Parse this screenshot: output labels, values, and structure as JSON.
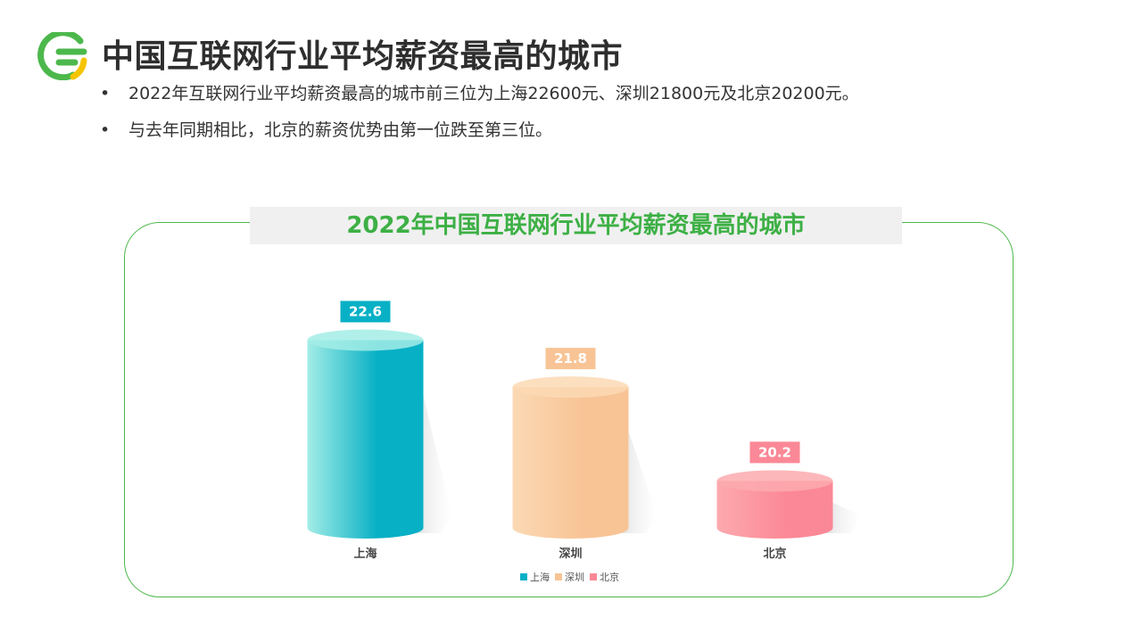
{
  "header": {
    "title": "中国互联网行业平均薪资最高的城市",
    "bullets": [
      "2022年互联网行业平均薪资最高的城市前三位为上海22600元、深圳21800元及北京20200元。",
      "与去年同期相比，北京的薪资优势由第一位跌至第三位。"
    ],
    "bullet_symbol": "•"
  },
  "logo": {
    "icon": "brand-logo-icon",
    "colors": [
      "#4cb84c",
      "#f5c400"
    ]
  },
  "chart_data": {
    "type": "bar",
    "title": "2022年中国互联网行业平均薪资最高的城市",
    "categories": [
      "上海",
      "深圳",
      "北京"
    ],
    "series": [
      {
        "name": "上海",
        "value": 22.6,
        "label": "22.6",
        "color_light": "#a3ede6",
        "color_dark": "#08b0c6"
      },
      {
        "name": "深圳",
        "value": 21.8,
        "label": "21.8",
        "color_light": "#fbd9b4",
        "color_dark": "#f8c496"
      },
      {
        "name": "北京",
        "value": 20.2,
        "label": "20.2",
        "color_light": "#fcaaae",
        "color_dark": "#fb8896"
      }
    ],
    "ylim": [
      19.4,
      23.2
    ],
    "grid": false,
    "legend_position": "bottom"
  }
}
